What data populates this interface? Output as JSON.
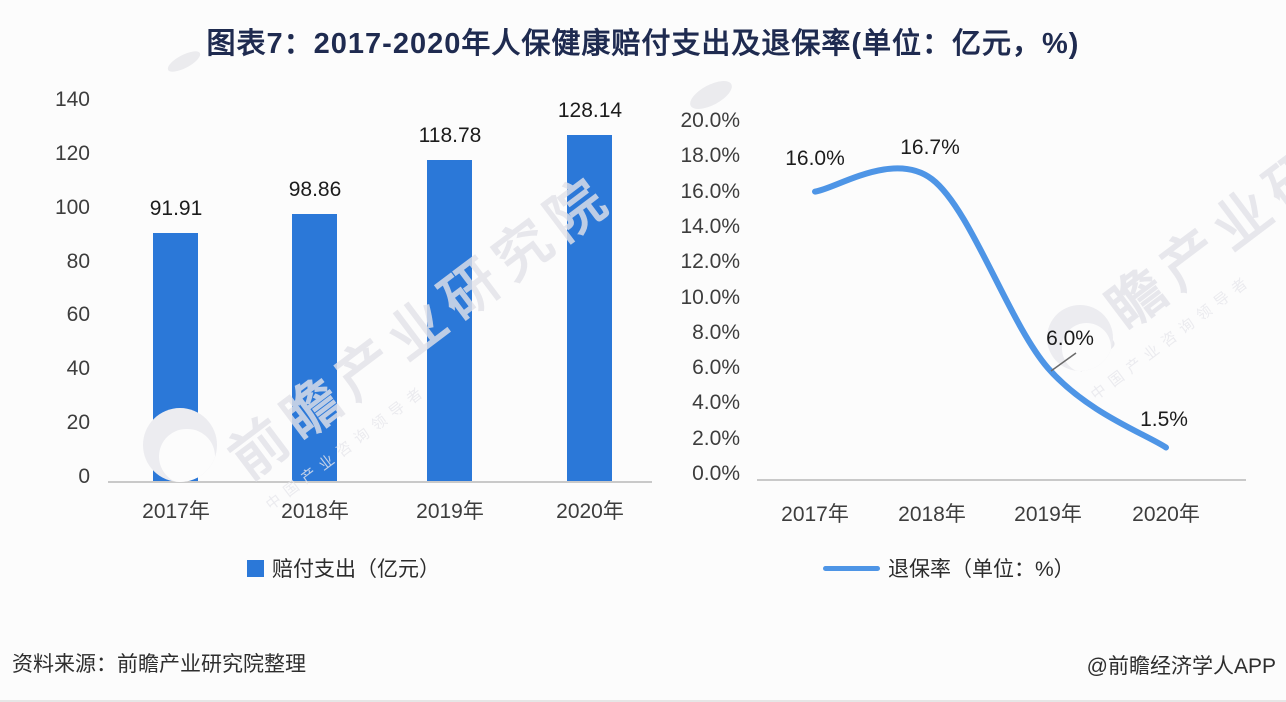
{
  "page": {
    "title": "图表7：2017-2020年人保健康赔付支出及退保率(单位：亿元，%)",
    "footer": {
      "source": "资料来源：前瞻产业研究院整理",
      "credit": "@前瞻经济学人APP"
    },
    "watermark": {
      "main": "前瞻产业研究院",
      "sub": "中国产业咨询领导者"
    },
    "colors": {
      "bar": "#2b78d8",
      "line": "#4e95e6",
      "axis": "#c9c9c9",
      "tick_text": "#3d3d3d",
      "title_text": "#1f2b50",
      "background": "#fcfcfc"
    }
  },
  "chart_data": [
    {
      "type": "bar",
      "name": "赔付支出",
      "categories": [
        "2017年",
        "2018年",
        "2019年",
        "2020年"
      ],
      "values": [
        91.91,
        98.86,
        118.78,
        128.14
      ],
      "data_labels": [
        "91.91",
        "98.86",
        "118.78",
        "128.14"
      ],
      "ylim": [
        0,
        140
      ],
      "ytick_step": 20,
      "ytick_labels": [
        "0",
        "20",
        "40",
        "60",
        "80",
        "100",
        "120",
        "140"
      ],
      "legend": "赔付支出（亿元）",
      "legend_position": "bottom",
      "grid": false
    },
    {
      "type": "line",
      "name": "退保率",
      "smooth": true,
      "categories": [
        "2017年",
        "2018年",
        "2019年",
        "2020年"
      ],
      "values": [
        16.0,
        16.7,
        6.0,
        1.5
      ],
      "data_labels": [
        "16.0%",
        "16.7%",
        "6.0%",
        "1.5%"
      ],
      "ylim": [
        0,
        20
      ],
      "ytick_step": 2,
      "ytick_labels": [
        "0.0%",
        "2.0%",
        "4.0%",
        "6.0%",
        "8.0%",
        "10.0%",
        "12.0%",
        "14.0%",
        "16.0%",
        "18.0%",
        "20.0%"
      ],
      "legend": "退保率（单位：%）",
      "legend_position": "bottom",
      "grid": false
    }
  ]
}
